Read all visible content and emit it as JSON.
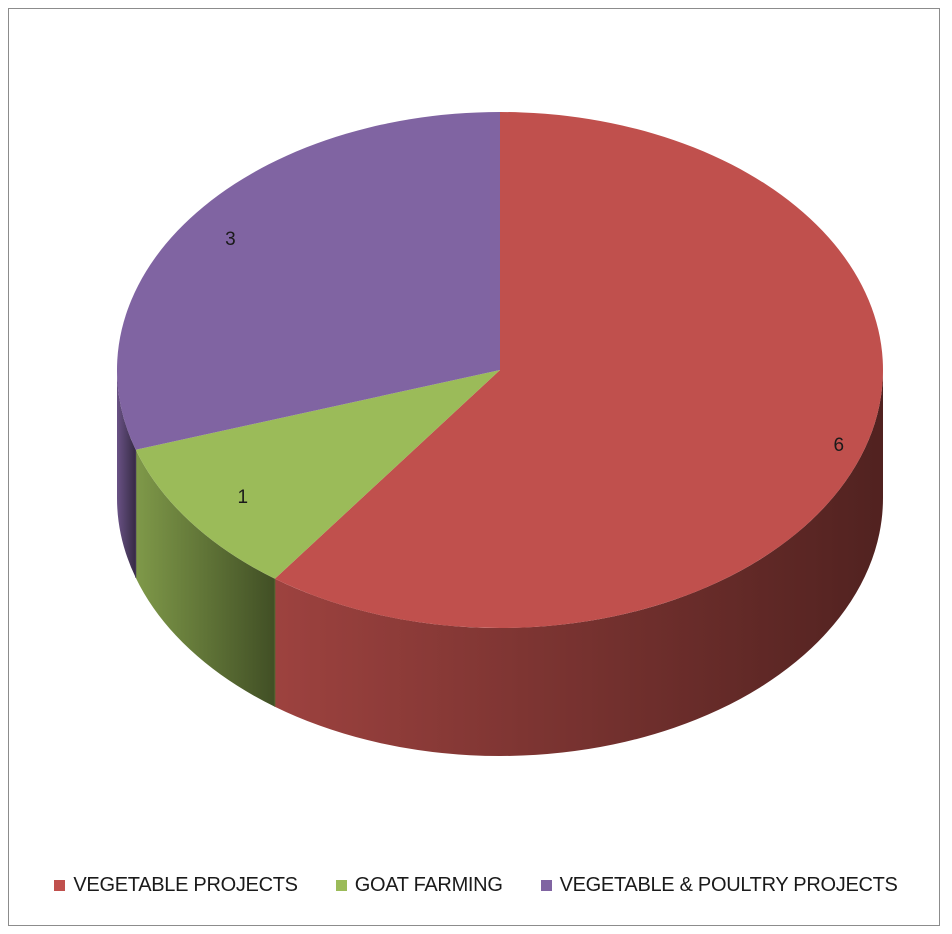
{
  "chart_data": {
    "type": "pie",
    "style": "3d",
    "title": "",
    "categories": [
      "VEGETABLE PROJECTS",
      "GOAT FARMING",
      "VEGETABLE & POULTRY PROJECTS"
    ],
    "values": [
      6,
      1,
      3
    ],
    "colors": [
      "#c0504d",
      "#9bbb59",
      "#8064a2"
    ],
    "legend_position": "bottom",
    "data_labels": [
      "6",
      "1",
      "3"
    ]
  }
}
